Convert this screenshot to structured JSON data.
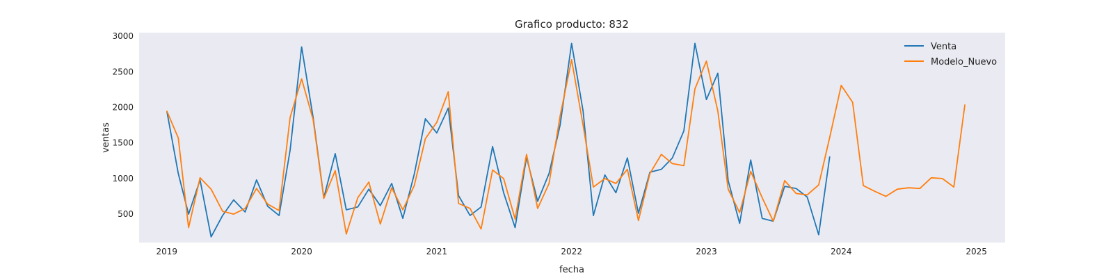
{
  "chart_data": {
    "type": "line",
    "title": "Grafico producto: 832",
    "xlabel": "fecha",
    "ylabel": "ventas",
    "x_tick_labels": [
      "2019",
      "2020",
      "2021",
      "2022",
      "2023",
      "2024",
      "2025"
    ],
    "y_tick_labels": [
      "500",
      "1000",
      "1500",
      "2000",
      "2500",
      "3000"
    ],
    "y_ticks": [
      500,
      1000,
      1500,
      2000,
      2500,
      3000
    ],
    "xlim": [
      "2018-10-18",
      "2025-03-20"
    ],
    "ylim": [
      100,
      3050
    ],
    "grid": false,
    "background": "#eaeaf2",
    "legend_position": "top-right",
    "x": [
      "2019-01",
      "2019-02",
      "2019-03",
      "2019-04",
      "2019-05",
      "2019-06",
      "2019-07",
      "2019-08",
      "2019-09",
      "2019-10",
      "2019-11",
      "2019-12",
      "2020-01",
      "2020-02",
      "2020-03",
      "2020-04",
      "2020-05",
      "2020-06",
      "2020-07",
      "2020-08",
      "2020-09",
      "2020-10",
      "2020-11",
      "2020-12",
      "2021-01",
      "2021-02",
      "2021-03",
      "2021-04",
      "2021-05",
      "2021-06",
      "2021-07",
      "2021-08",
      "2021-09",
      "2021-10",
      "2021-11",
      "2021-12",
      "2022-01",
      "2022-02",
      "2022-03",
      "2022-04",
      "2022-05",
      "2022-06",
      "2022-07",
      "2022-08",
      "2022-09",
      "2022-10",
      "2022-11",
      "2022-12",
      "2023-01",
      "2023-02",
      "2023-03",
      "2023-04",
      "2023-05",
      "2023-06",
      "2023-07",
      "2023-08",
      "2023-09",
      "2023-10",
      "2023-11",
      "2023-12",
      "2024-01",
      "2024-02",
      "2024-03",
      "2024-04",
      "2024-05",
      "2024-06",
      "2024-07",
      "2024-08",
      "2024-09",
      "2024-10",
      "2024-11",
      "2024-12"
    ],
    "series": [
      {
        "name": "Venta",
        "color": "#1f77b4",
        "values": [
          1950,
          1070,
          500,
          980,
          180,
          480,
          700,
          530,
          980,
          610,
          480,
          1400,
          2850,
          1860,
          730,
          1350,
          560,
          600,
          850,
          620,
          930,
          440,
          1060,
          1840,
          1640,
          1990,
          760,
          480,
          600,
          1450,
          800,
          310,
          1300,
          680,
          1070,
          1750,
          2900,
          1950,
          480,
          1050,
          800,
          1290,
          510,
          1090,
          1130,
          1290,
          1670,
          2900,
          2110,
          2480,
          970,
          370,
          1260,
          440,
          400,
          890,
          860,
          740,
          210,
          1310,
          null,
          null,
          null,
          null,
          null,
          null,
          null,
          null,
          null,
          null,
          null,
          null
        ]
      },
      {
        "name": "Modelo_Nuevo",
        "color": "#ff7f0e",
        "values": [
          1950,
          1570,
          310,
          1010,
          850,
          540,
          500,
          580,
          860,
          640,
          550,
          1860,
          2400,
          1830,
          720,
          1110,
          220,
          730,
          950,
          360,
          870,
          560,
          900,
          1560,
          1790,
          2220,
          650,
          580,
          290,
          1120,
          1000,
          430,
          1340,
          580,
          930,
          1880,
          2670,
          1750,
          880,
          1000,
          930,
          1130,
          410,
          1070,
          1340,
          1210,
          1180,
          2260,
          2650,
          1950,
          850,
          520,
          1100,
          730,
          400,
          970,
          790,
          770,
          910,
          1580,
          2310,
          2070,
          900,
          820,
          750,
          850,
          870,
          860,
          1010,
          1000,
          880,
          2040
        ]
      }
    ]
  }
}
